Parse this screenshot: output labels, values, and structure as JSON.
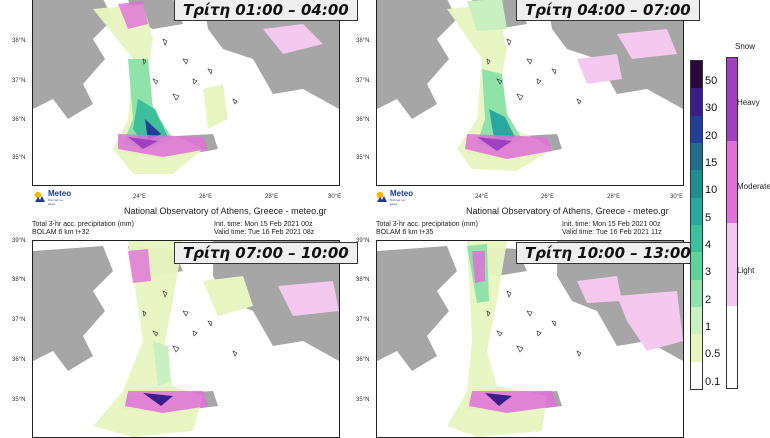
{
  "panels": [
    {
      "id": "p1",
      "time_label": "Τρίτη 01:00 – 04:00",
      "header_left": [
        "",
        ""
      ],
      "header_right": [
        "",
        ""
      ],
      "footer": "National Observatory of Athens, Greece - meteo.gr",
      "lat_labels": [
        "38°N",
        "37°N",
        "36°N",
        "35°N"
      ],
      "lon_labels": [
        "24°E",
        "26°E",
        "28°E",
        "30°E"
      ]
    },
    {
      "id": "p2",
      "time_label": "Τρίτη 04:00 – 07:00",
      "header_left": [
        "",
        ""
      ],
      "header_right": [
        "",
        ""
      ],
      "footer": "National Observatory of Athens, Greece - meteo.gr",
      "lat_labels": [
        "38°N",
        "37°N",
        "36°N",
        "35°N"
      ],
      "lon_labels": [
        "24°E",
        "26°E",
        "28°E",
        "30°E"
      ]
    },
    {
      "id": "p3",
      "time_label": "Τρίτη 07:00 – 10:00",
      "header_left": [
        "Total 3-hr acc. precipitation (mm)",
        "BOLAM 6 km t+32"
      ],
      "header_right": [
        "Init. time: Mon 15 Feb 2021 00z",
        "Valid time: Tue 16 Feb 2021 08z"
      ],
      "footer": "",
      "lat_labels": [
        "39°N",
        "38°N",
        "37°N",
        "36°N",
        "35°N"
      ],
      "lon_labels": []
    },
    {
      "id": "p4",
      "time_label": "Τρίτη 10:00 – 13:00",
      "header_left": [
        "Total 3-hr acc. precipitation (mm)",
        "BOLAM 6 km t+35"
      ],
      "header_right": [
        "Init. time: Mon 15 Feb 2021 00z",
        "Valid time: Tue 16 Feb 2021 11z"
      ],
      "footer": "",
      "lat_labels": [
        "39°N",
        "38°N",
        "37°N",
        "36°N",
        "35°N"
      ],
      "lon_labels": []
    }
  ],
  "logo": {
    "name": "Meteo",
    "tag": "Όλα για τον καιρό"
  },
  "rain_scale": {
    "labels": [
      "50",
      "30",
      "20",
      "15",
      "10",
      "5",
      "4",
      "3",
      "2",
      "1",
      "0.5",
      "0.1"
    ],
    "colors": [
      "#2a0a3d",
      "#3a1f8a",
      "#1f3f9a",
      "#1e6e8c",
      "#1f8e8e",
      "#2aa7a0",
      "#3cbf9a",
      "#5fd39a",
      "#8fe3a8",
      "#c8f0c0",
      "#e8f5c0",
      "#ffffff"
    ]
  },
  "snow_scale": {
    "title": "Snow",
    "labels": [
      "Heavy",
      "Moderate",
      "Light"
    ],
    "colors": [
      "#a040c0",
      "#e070d8",
      "#f5c8f0",
      "#ffffff"
    ]
  }
}
